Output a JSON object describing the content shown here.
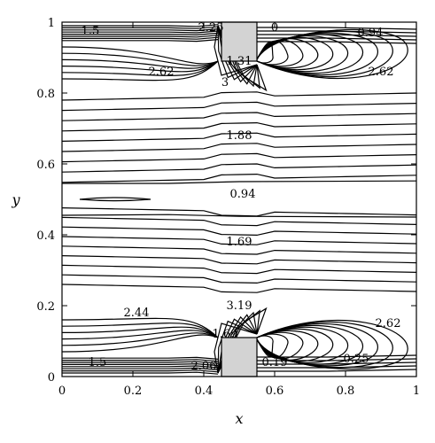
{
  "chart_data": {
    "type": "contour",
    "title": "",
    "xlabel": "x",
    "ylabel": "y",
    "xlim": [
      0,
      1
    ],
    "ylim": [
      0,
      1
    ],
    "x_ticks": [
      "0",
      "0.2",
      "0.4",
      "0.6",
      "0.8",
      "1"
    ],
    "y_ticks": [
      "0",
      "0.2",
      "0.4",
      "0.6",
      "0.8",
      "1"
    ],
    "obstacles": [
      {
        "x0": 0.45,
        "x1": 0.55,
        "y0": 0.89,
        "y1": 1.0,
        "color": "#d3d3d3"
      },
      {
        "x0": 0.45,
        "x1": 0.55,
        "y0": 0.0,
        "y1": 0.11,
        "color": "#d3d3d3"
      }
    ],
    "contour_labels": [
      {
        "text": "1.5",
        "x": 0.08,
        "y": 0.975
      },
      {
        "text": "2.25",
        "x": 0.42,
        "y": 0.985
      },
      {
        "text": "0",
        "x": 0.6,
        "y": 0.985
      },
      {
        "text": "0.94",
        "x": 0.87,
        "y": 0.97
      },
      {
        "text": "1.31",
        "x": 0.5,
        "y": 0.89
      },
      {
        "text": "2.62",
        "x": 0.28,
        "y": 0.86
      },
      {
        "text": "2.62",
        "x": 0.9,
        "y": 0.86
      },
      {
        "text": "3",
        "x": 0.46,
        "y": 0.83
      },
      {
        "text": "1.88",
        "x": 0.5,
        "y": 0.68
      },
      {
        "text": "0.94",
        "x": 0.51,
        "y": 0.515
      },
      {
        "text": "1.69",
        "x": 0.5,
        "y": 0.38
      },
      {
        "text": "2.44",
        "x": 0.21,
        "y": 0.18
      },
      {
        "text": "3.19",
        "x": 0.5,
        "y": 0.2
      },
      {
        "text": "2.62",
        "x": 0.92,
        "y": 0.15
      },
      {
        "text": "1.69",
        "x": 0.46,
        "y": 0.12
      },
      {
        "text": "1.5",
        "x": 0.1,
        "y": 0.04
      },
      {
        "text": "2.06",
        "x": 0.4,
        "y": 0.03
      },
      {
        "text": "0.19",
        "x": 0.6,
        "y": 0.04
      },
      {
        "text": "0.25",
        "x": 0.83,
        "y": 0.05
      }
    ]
  }
}
